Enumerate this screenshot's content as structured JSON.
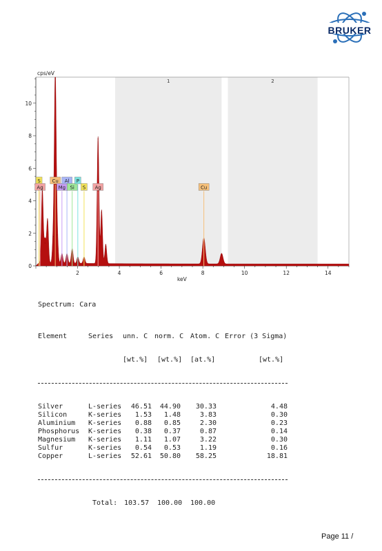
{
  "logo": {
    "text": "BRUKER"
  },
  "chart_data": {
    "type": "area",
    "ylabel": "cps/eV",
    "xlabel": "keV",
    "xlim": [
      0,
      15
    ],
    "ylim": [
      0,
      11.6
    ],
    "xticks": [
      2,
      4,
      6,
      8,
      10,
      12,
      14
    ],
    "yticks": [
      0,
      2,
      4,
      6,
      8,
      10
    ],
    "regions": [
      {
        "label": "1",
        "from": 3.8,
        "to": 8.9
      },
      {
        "label": "2",
        "from": 9.2,
        "to": 13.5
      }
    ],
    "peaks": [
      {
        "x": 0.31,
        "y": 4.6
      },
      {
        "x": 0.44,
        "y": 1.4
      },
      {
        "x": 0.56,
        "y": 2.7
      },
      {
        "x": 0.84,
        "y": 1.8
      },
      {
        "x": 0.93,
        "y": 11.5
      },
      {
        "x": 1.02,
        "y": 1.9
      },
      {
        "x": 1.25,
        "y": 0.6
      },
      {
        "x": 1.49,
        "y": 0.6
      },
      {
        "x": 1.74,
        "y": 0.9
      },
      {
        "x": 2.01,
        "y": 0.4
      },
      {
        "x": 2.31,
        "y": 0.4
      },
      {
        "x": 2.98,
        "y": 7.8
      },
      {
        "x": 3.15,
        "y": 3.3
      },
      {
        "x": 3.35,
        "y": 1.2
      },
      {
        "x": 8.05,
        "y": 1.6
      },
      {
        "x": 8.9,
        "y": 0.65
      }
    ],
    "element_markers": [
      {
        "label": "S",
        "x": 0.15,
        "row": 1,
        "color": "#f2e25a"
      },
      {
        "label": "Ag",
        "x": 0.2,
        "row": 2,
        "color": "#f2a3a3"
      },
      {
        "label": "Cu",
        "x": 0.93,
        "row": 1,
        "color": "#f6c07a"
      },
      {
        "label": "Mg",
        "x": 1.25,
        "row": 2,
        "color": "#c79ef5"
      },
      {
        "label": "Al",
        "x": 1.49,
        "row": 1,
        "color": "#a9b5f7"
      },
      {
        "label": "Si",
        "x": 1.74,
        "row": 2,
        "color": "#9ee79a"
      },
      {
        "label": "P",
        "x": 2.01,
        "row": 1,
        "color": "#7de3df"
      },
      {
        "label": "S",
        "x": 2.31,
        "row": 2,
        "color": "#f2e25a"
      },
      {
        "label": "Ag",
        "x": 2.98,
        "row": 2,
        "color": "#f2a3a3"
      },
      {
        "label": "Cu",
        "x": 8.05,
        "row": 2,
        "color": "#f6c07a"
      }
    ]
  },
  "spectrum": {
    "title": "Spectrum: Cara"
  },
  "table": {
    "header1": [
      "Element",
      "Series",
      "unn. C",
      "norm. C",
      "Atom. C",
      "Error (3 Sigma)"
    ],
    "header2": [
      "[wt.%]",
      "[wt.%]",
      "[at.%]",
      "[wt.%]"
    ],
    "rows": [
      [
        "Silver",
        "L-series",
        "46.51",
        "44.90",
        "30.33",
        "4.48"
      ],
      [
        "Silicon",
        "K-series",
        "1.53",
        "1.48",
        "3.83",
        "0.30"
      ],
      [
        "Aluminium",
        "K-series",
        "0.88",
        "0.85",
        "2.30",
        "0.23"
      ],
      [
        "Phosphorus",
        "K-series",
        "0.38",
        "0.37",
        "0.87",
        "0.14"
      ],
      [
        "Magnesium",
        "K-series",
        "1.11",
        "1.07",
        "3.22",
        "0.30"
      ],
      [
        "Sulfur",
        "K-series",
        "0.54",
        "0.53",
        "1.19",
        "0.16"
      ],
      [
        "Copper",
        "L-series",
        "52.61",
        "50.80",
        "58.25",
        "18.81"
      ]
    ],
    "total_label": "Total:",
    "totals": [
      "103.57",
      "100.00",
      "100.00"
    ]
  },
  "footer": {
    "page": "Page 11 /"
  }
}
